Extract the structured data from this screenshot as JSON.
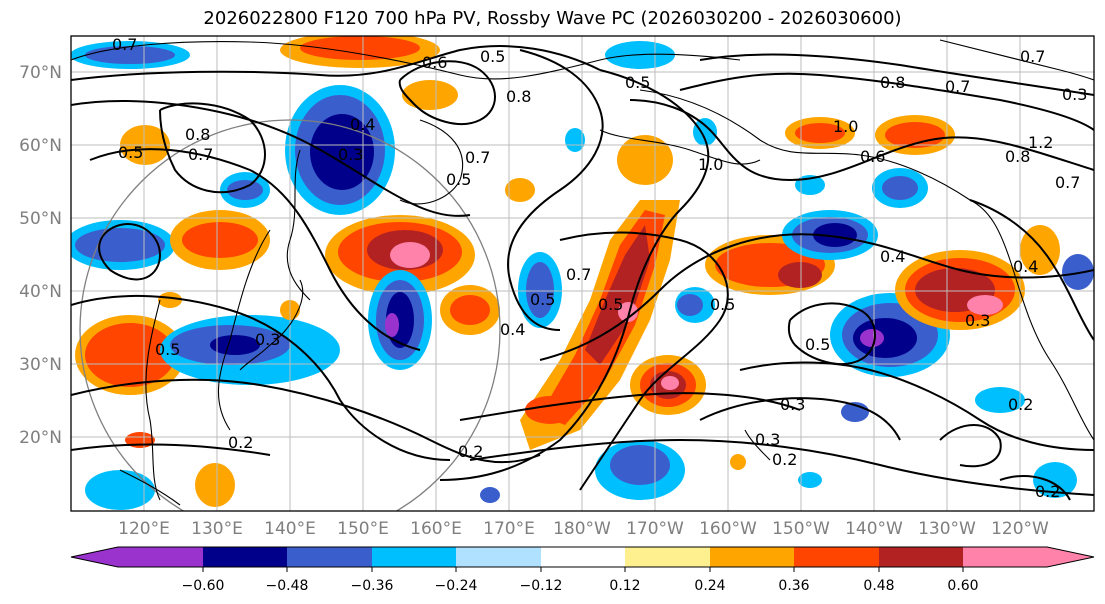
{
  "title": "2026022800 F120 700 hPa PV, Rossby Wave PC (2026030200 - 2026030600)",
  "lat_labels": [
    "70°N",
    "60°N",
    "50°N",
    "40°N",
    "30°N",
    "20°N"
  ],
  "lon_labels": [
    "120°E",
    "130°E",
    "140°E",
    "150°E",
    "160°E",
    "170°E",
    "180°W",
    "170°W",
    "160°W",
    "150°W",
    "140°W",
    "130°W",
    "120°W"
  ],
  "contour_labels": [
    "0.7",
    "0.5",
    "0.6",
    "0.8",
    "0.5",
    "0.8",
    "0.7",
    "0.5",
    "0.4",
    "0.3",
    "0.7",
    "0.5",
    "1.0",
    "0.6",
    "1.0",
    "0.7",
    "0.8",
    "1.2",
    "0.7",
    "0.8",
    "0.7",
    "0.5",
    "0.4",
    "0.5",
    "0.3",
    "0.7",
    "0.5",
    "0.4",
    "0.5",
    "0.4",
    "0.3",
    "0.3",
    "0.5",
    "0.3",
    "0.2",
    "0.2",
    "0.2",
    "0.2",
    "0.2",
    "0.3"
  ],
  "colorbar": {
    "ticks": [
      "−0.60",
      "−0.48",
      "−0.36",
      "−0.24",
      "−0.12",
      "0.12",
      "0.24",
      "0.36",
      "0.48",
      "0.60"
    ],
    "colors": [
      "#9a32cd",
      "#00008b",
      "#3a5fcd",
      "#00bfff",
      "#b0e2ff",
      "#ffffff",
      "#fff08f",
      "#ffa500",
      "#ff4500",
      "#b22222",
      "#ff82ab"
    ]
  }
}
